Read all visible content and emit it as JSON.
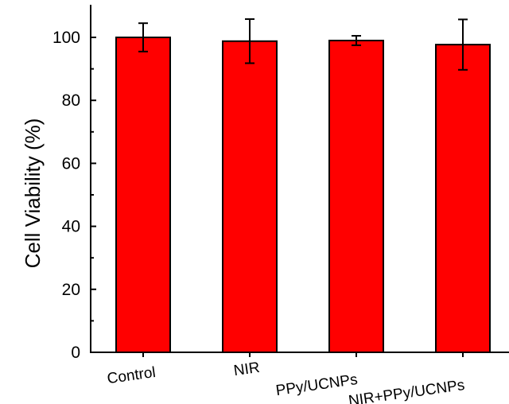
{
  "chart_data": {
    "type": "bar",
    "title": "",
    "xlabel": "",
    "ylabel": "Cell Viability (%)",
    "categories": [
      "Control",
      "NIR",
      "PPy/UCNPs",
      "NIR+PPy/UCNPs"
    ],
    "values": [
      100,
      98.8,
      99,
      97.7
    ],
    "error": [
      4.5,
      7,
      1.5,
      8
    ],
    "ylim": [
      0,
      110
    ],
    "yticks": [
      0,
      20,
      40,
      60,
      80,
      100
    ],
    "bar_color": "#ff0000",
    "grid": false,
    "legend": "none"
  }
}
